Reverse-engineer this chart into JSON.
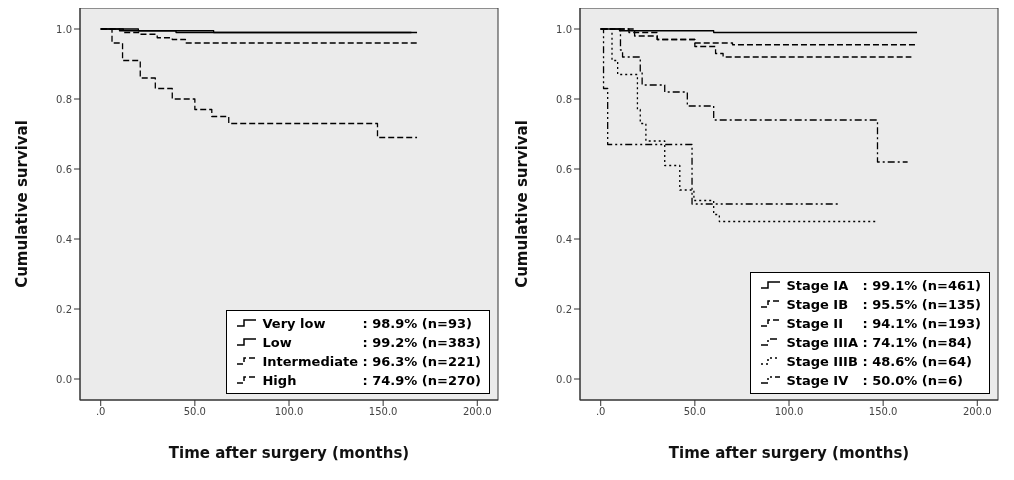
{
  "chart_data": [
    {
      "type": "step",
      "xlabel": "Time after surgery (months)",
      "ylabel": "Cumulative survival",
      "xlim": [
        -11,
        211
      ],
      "ylim": [
        -0.06,
        1.06
      ],
      "xticks": [
        {
          "value": 0,
          "label": ".0"
        },
        {
          "value": 50,
          "label": "50.0"
        },
        {
          "value": 100,
          "label": "100.0"
        },
        {
          "value": 150,
          "label": "150.0"
        },
        {
          "value": 200,
          "label": "200.0"
        }
      ],
      "yticks": [
        {
          "value": 0,
          "label": "0.0"
        },
        {
          "value": 0.2,
          "label": "0.2"
        },
        {
          "value": 0.4,
          "label": "0.4"
        },
        {
          "value": 0.6,
          "label": "0.6"
        },
        {
          "value": 0.8,
          "label": "0.8"
        },
        {
          "value": 1,
          "label": "1.0"
        }
      ],
      "legend": "bottom right",
      "series": [
        {
          "name": "Very low : 98.9% (n=93)",
          "color": "#000000",
          "line_style": "solid",
          "x": [
            0,
            20,
            40,
            165
          ],
          "values": [
            1,
            0.995,
            0.99,
            0.99
          ]
        },
        {
          "name": "Low : 99.2% (n=383)",
          "color": "#000000",
          "line_style": "solid",
          "x": [
            0,
            10,
            60,
            168
          ],
          "values": [
            1,
            0.995,
            0.99,
            0.99
          ]
        },
        {
          "name": "Intermediate : 96.3% (n=221)",
          "color": "#000000",
          "line_style": "dashed",
          "x": [
            0,
            12,
            21,
            30,
            38,
            45,
            169
          ],
          "values": [
            1,
            0.99,
            0.985,
            0.975,
            0.97,
            0.96,
            0.96
          ]
        },
        {
          "name": "High : 74.9% (n=270)",
          "color": "#000000",
          "line_style": "dashed",
          "x": [
            0,
            6,
            11.6,
            21,
            29,
            38,
            50,
            59,
            68,
            147,
            168
          ],
          "values": [
            1,
            0.96,
            0.91,
            0.86,
            0.83,
            0.8,
            0.77,
            0.75,
            0.73,
            0.69,
            0.69
          ]
        }
      ]
    },
    {
      "type": "step",
      "xlabel": "Time after surgery (months)",
      "ylabel": "Cumulative survival",
      "xlim": [
        -11,
        211
      ],
      "ylim": [
        -0.06,
        1.06
      ],
      "xticks": [
        {
          "value": 0,
          "label": ".0"
        },
        {
          "value": 50,
          "label": "50.0"
        },
        {
          "value": 100,
          "label": "100.0"
        },
        {
          "value": 150,
          "label": "150.0"
        },
        {
          "value": 200,
          "label": "200.0"
        }
      ],
      "yticks": [
        {
          "value": 0,
          "label": "0.0"
        },
        {
          "value": 0.2,
          "label": "0.2"
        },
        {
          "value": 0.4,
          "label": "0.4"
        },
        {
          "value": 0.6,
          "label": "0.6"
        },
        {
          "value": 0.8,
          "label": "0.8"
        },
        {
          "value": 1,
          "label": "1.0"
        }
      ],
      "legend": "bottom right",
      "series": [
        {
          "name": "Stage IA : 99.1% (n=461)",
          "color": "#000000",
          "line_style": "solid",
          "x": [
            0,
            10,
            60,
            168
          ],
          "values": [
            1,
            0.995,
            0.99,
            0.99
          ]
        },
        {
          "name": "Stage IB : 95.5% (n=135)",
          "color": "#000000",
          "line_style": "dashed",
          "x": [
            0,
            18,
            30,
            50,
            70,
            168
          ],
          "values": [
            1,
            0.98,
            0.97,
            0.96,
            0.955,
            0.955
          ]
        },
        {
          "name": "Stage II : 94.1% (n=193)",
          "color": "#000000",
          "line_style": "dashed",
          "x": [
            0,
            15,
            30,
            50,
            61,
            65,
            165
          ],
          "values": [
            1,
            0.99,
            0.97,
            0.95,
            0.93,
            0.92,
            0.92
          ]
        },
        {
          "name": "Stage IIIA : 74.1% (n=84)",
          "color": "#000000",
          "line_style": "dashdot",
          "x": [
            0,
            10.5,
            11.6,
            21,
            22,
            34,
            46,
            60,
            147,
            163
          ],
          "values": [
            1,
            0.94,
            0.92,
            0.88,
            0.84,
            0.82,
            0.78,
            0.74,
            0.62,
            0.62
          ]
        },
        {
          "name": "Stage IIIB : 48.6% (n=64)",
          "color": "#000000",
          "line_style": "dotted",
          "x": [
            0,
            6,
            9,
            19.5,
            21,
            24,
            34,
            42,
            49.5,
            60,
            63,
            147
          ],
          "values": [
            1,
            0.91,
            0.87,
            0.77,
            0.73,
            0.68,
            0.61,
            0.54,
            0.51,
            0.47,
            0.45,
            0.45
          ]
        },
        {
          "name": "Stage IV : 50.0% (n=6)",
          "color": "#000000",
          "line_style": "dashdotdot",
          "x": [
            0,
            1.5,
            3.7,
            48.5,
            127
          ],
          "values": [
            1,
            0.83,
            0.67,
            0.5,
            0.5
          ]
        }
      ]
    }
  ]
}
